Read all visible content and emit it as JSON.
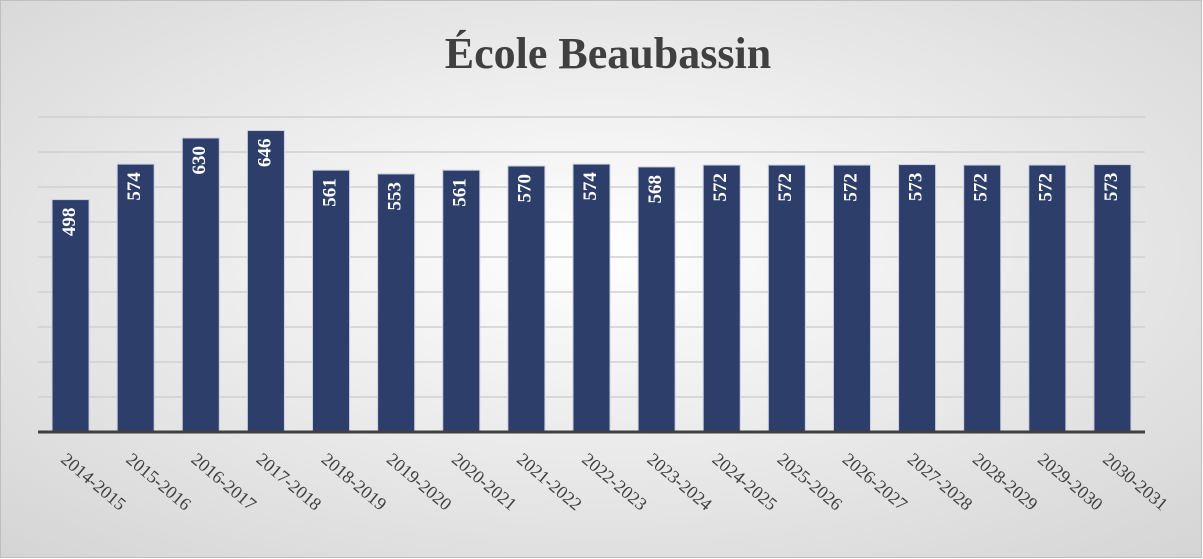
{
  "chart_data": {
    "type": "bar",
    "title": "École Beaubassin",
    "categories": [
      "2014-2015",
      "2015-2016",
      "2016-2017",
      "2017-2018",
      "2018-2019",
      "2019-2020",
      "2020-2021",
      "2021-2022",
      "2022-2023",
      "2023-2024",
      "2024-2025",
      "2025-2026",
      "2026-2027",
      "2027-2028",
      "2028-2029",
      "2029-2030",
      "2030-2031"
    ],
    "values": [
      498,
      574,
      630,
      646,
      561,
      553,
      561,
      570,
      574,
      568,
      572,
      572,
      572,
      573,
      572,
      572,
      573
    ],
    "color": "#2e3e6b",
    "ylim": [
      0,
      675
    ],
    "yticks": [
      0,
      75,
      150,
      225,
      300,
      375,
      450,
      525,
      600,
      675
    ],
    "grid": true
  }
}
